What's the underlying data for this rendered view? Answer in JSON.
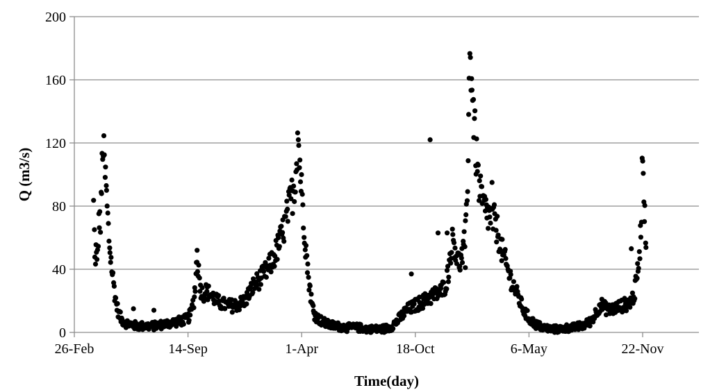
{
  "chart_data": {
    "type": "scatter",
    "title": "",
    "xlabel": "Time(day)",
    "ylabel": "Q (m3/s)",
    "x_unit": "day index (26-Feb of year 1 = 0)",
    "ylim": [
      0,
      200
    ],
    "yticks": [
      0,
      40,
      80,
      120,
      160,
      200
    ],
    "xticks": [
      {
        "day": 0,
        "label": "26-Feb"
      },
      {
        "day": 200,
        "label": "14-Sep"
      },
      {
        "day": 400,
        "label": "1-Apr"
      },
      {
        "day": 600,
        "label": "18-Oct"
      },
      {
        "day": 800,
        "label": "6-May"
      },
      {
        "day": 1000,
        "label": "22-Nov"
      }
    ],
    "xlim": [
      0,
      1099
    ],
    "grid": "horizontal",
    "legend": "none",
    "marker_color": "#000000",
    "series": [
      {
        "anchors": [
          [
            34,
            80
          ],
          [
            36,
            45
          ],
          [
            38,
            52
          ],
          [
            40,
            42
          ],
          [
            42,
            60
          ],
          [
            44,
            75
          ],
          [
            46,
            68
          ],
          [
            48,
            90
          ],
          [
            49,
            104
          ],
          [
            50,
            121
          ],
          [
            52,
            110
          ],
          [
            54,
            100
          ],
          [
            56,
            92
          ],
          [
            58,
            78
          ],
          [
            60,
            65
          ],
          [
            62,
            55
          ],
          [
            65,
            45
          ],
          [
            68,
            34
          ],
          [
            71,
            25
          ],
          [
            74,
            18
          ],
          [
            78,
            12
          ],
          [
            83,
            8
          ],
          [
            90,
            6
          ],
          [
            100,
            5
          ],
          [
            110,
            4
          ],
          [
            125,
            4
          ],
          [
            140,
            4
          ],
          [
            155,
            5
          ],
          [
            170,
            6
          ],
          [
            185,
            7
          ],
          [
            195,
            8
          ],
          [
            200,
            9
          ],
          [
            205,
            12
          ],
          [
            210,
            20
          ],
          [
            213,
            30
          ],
          [
            216,
            48
          ],
          [
            219,
            38
          ],
          [
            222,
            28
          ],
          [
            226,
            24
          ],
          [
            232,
            26
          ],
          [
            240,
            24
          ],
          [
            250,
            20
          ],
          [
            260,
            18
          ],
          [
            270,
            17
          ],
          [
            280,
            17
          ],
          [
            290,
            18
          ],
          [
            300,
            20
          ],
          [
            308,
            25
          ],
          [
            316,
            30
          ],
          [
            324,
            33
          ],
          [
            332,
            36
          ],
          [
            340,
            40
          ],
          [
            348,
            45
          ],
          [
            356,
            52
          ],
          [
            364,
            60
          ],
          [
            372,
            70
          ],
          [
            378,
            80
          ],
          [
            384,
            88
          ],
          [
            388,
            95
          ],
          [
            391,
            110
          ],
          [
            393,
            127
          ],
          [
            396,
            112
          ],
          [
            399,
            95
          ],
          [
            402,
            80
          ],
          [
            405,
            65
          ],
          [
            408,
            52
          ],
          [
            411,
            38
          ],
          [
            414,
            30
          ],
          [
            418,
            18
          ],
          [
            422,
            12
          ],
          [
            428,
            9
          ],
          [
            436,
            7
          ],
          [
            446,
            5
          ],
          [
            460,
            4
          ],
          [
            480,
            3
          ],
          [
            500,
            3
          ],
          [
            520,
            2
          ],
          [
            540,
            2
          ],
          [
            555,
            3
          ],
          [
            565,
            6
          ],
          [
            575,
            10
          ],
          [
            585,
            14
          ],
          [
            595,
            16
          ],
          [
            605,
            18
          ],
          [
            615,
            20
          ],
          [
            625,
            22
          ],
          [
            635,
            24
          ],
          [
            645,
            26
          ],
          [
            653,
            30
          ],
          [
            659,
            40
          ],
          [
            663,
            55
          ],
          [
            667,
            60
          ],
          [
            671,
            52
          ],
          [
            675,
            45
          ],
          [
            680,
            45
          ],
          [
            685,
            52
          ],
          [
            689,
            65
          ],
          [
            692,
            100
          ],
          [
            694,
            140
          ],
          [
            696,
            168
          ],
          [
            698,
            172
          ],
          [
            700,
            158
          ],
          [
            703,
            135
          ],
          [
            706,
            118
          ],
          [
            710,
            100
          ],
          [
            714,
            88
          ],
          [
            718,
            82
          ],
          [
            722,
            78
          ],
          [
            728,
            74
          ],
          [
            734,
            72
          ],
          [
            740,
            70
          ],
          [
            746,
            62
          ],
          [
            752,
            52
          ],
          [
            758,
            45
          ],
          [
            764,
            38
          ],
          [
            770,
            32
          ],
          [
            778,
            25
          ],
          [
            786,
            18
          ],
          [
            794,
            12
          ],
          [
            802,
            8
          ],
          [
            812,
            5
          ],
          [
            825,
            3
          ],
          [
            840,
            2
          ],
          [
            855,
            2
          ],
          [
            870,
            3
          ],
          [
            880,
            3
          ],
          [
            890,
            4
          ],
          [
            900,
            5
          ],
          [
            908,
            7
          ],
          [
            914,
            10
          ],
          [
            920,
            14
          ],
          [
            926,
            18
          ],
          [
            932,
            16
          ],
          [
            940,
            14
          ],
          [
            948,
            15
          ],
          [
            956,
            16
          ],
          [
            964,
            17
          ],
          [
            972,
            18
          ],
          [
            980,
            20
          ],
          [
            986,
            25
          ],
          [
            990,
            35
          ],
          [
            993,
            45
          ],
          [
            996,
            60
          ],
          [
            998,
            80
          ],
          [
            1000,
            121
          ],
          [
            1002,
            90
          ],
          [
            1004,
            70
          ],
          [
            1006,
            60
          ]
        ],
        "outliers": [
          [
            626,
            122
          ],
          [
            593,
            37
          ],
          [
            640,
            63
          ],
          [
            656,
            63
          ],
          [
            688,
            41
          ],
          [
            735,
            95
          ],
          [
            980,
            53
          ],
          [
            216,
            52
          ],
          [
            104,
            15
          ],
          [
            140,
            14
          ]
        ]
      }
    ]
  }
}
